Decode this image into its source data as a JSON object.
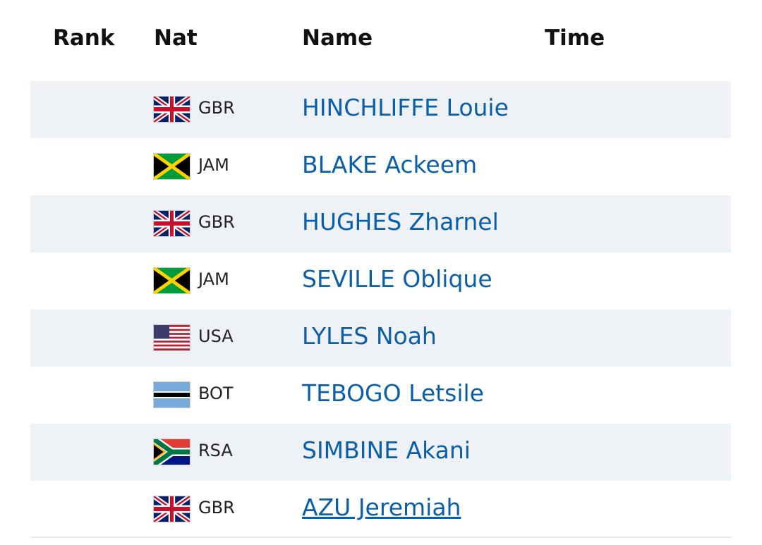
{
  "table": {
    "header": [
      "Rank",
      "Nat",
      "Name",
      "Time"
    ],
    "rows": [
      {
        "nat": "GBR",
        "name": "HINCHLIFFE Louie"
      },
      {
        "nat": "JAM",
        "name": "BLAKE Ackeem"
      },
      {
        "nat": "GBR",
        "name": "HUGHES Zharnel"
      },
      {
        "nat": "JAM",
        "name": "SEVILLE Oblique"
      },
      {
        "nat": "USA",
        "name": "LYLES Noah"
      },
      {
        "nat": "BOT",
        "name": "TEBOGO Letsile"
      },
      {
        "nat": "RSA",
        "name": "SIMBINE Akani"
      },
      {
        "nat": "GBR",
        "name": "AZU Jeremiah"
      }
    ]
  }
}
